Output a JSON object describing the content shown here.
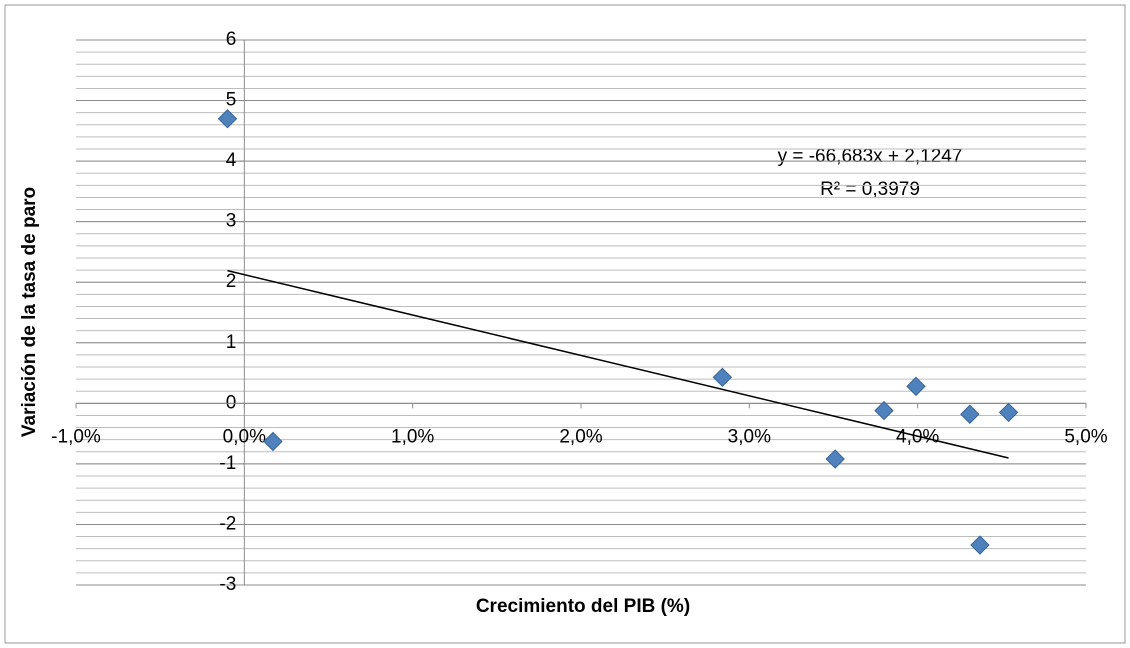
{
  "chart_data": {
    "type": "scatter",
    "xlabel": "Crecimiento del PIB (%)",
    "ylabel": "Variación de la tasa de paro",
    "color": "#4f81bd",
    "x": [
      -0.001,
      0.0017,
      0.0284,
      0.0351,
      0.038,
      0.0399,
      0.0431,
      0.0437,
      0.0454
    ],
    "values": [
      4.7,
      -0.63,
      0.43,
      -0.92,
      -0.12,
      0.28,
      -0.18,
      -2.34,
      -0.15
    ],
    "xlim": [
      -0.01,
      0.05
    ],
    "xticks": [
      {
        "value": -0.01,
        "label": "-1,0%"
      },
      {
        "value": 0,
        "label": "0,0%"
      },
      {
        "value": 0.01,
        "label": "1,0%"
      },
      {
        "value": 0.02,
        "label": "2,0%"
      },
      {
        "value": 0.03,
        "label": "3,0%"
      },
      {
        "value": 0.04,
        "label": "4,0%"
      },
      {
        "value": 0.05,
        "label": "5,0%"
      }
    ],
    "ylim": [
      -3,
      6
    ],
    "yticks": [
      -3,
      -2,
      -1,
      0,
      1,
      2,
      3,
      4,
      5,
      6
    ],
    "grid": true,
    "minor_grid": 0.2,
    "trendline": {
      "slope": -66.683,
      "intercept": 2.1247
    },
    "annotations": [
      "y = -66,683x + 2,1247",
      "R² = 0,3979"
    ]
  }
}
